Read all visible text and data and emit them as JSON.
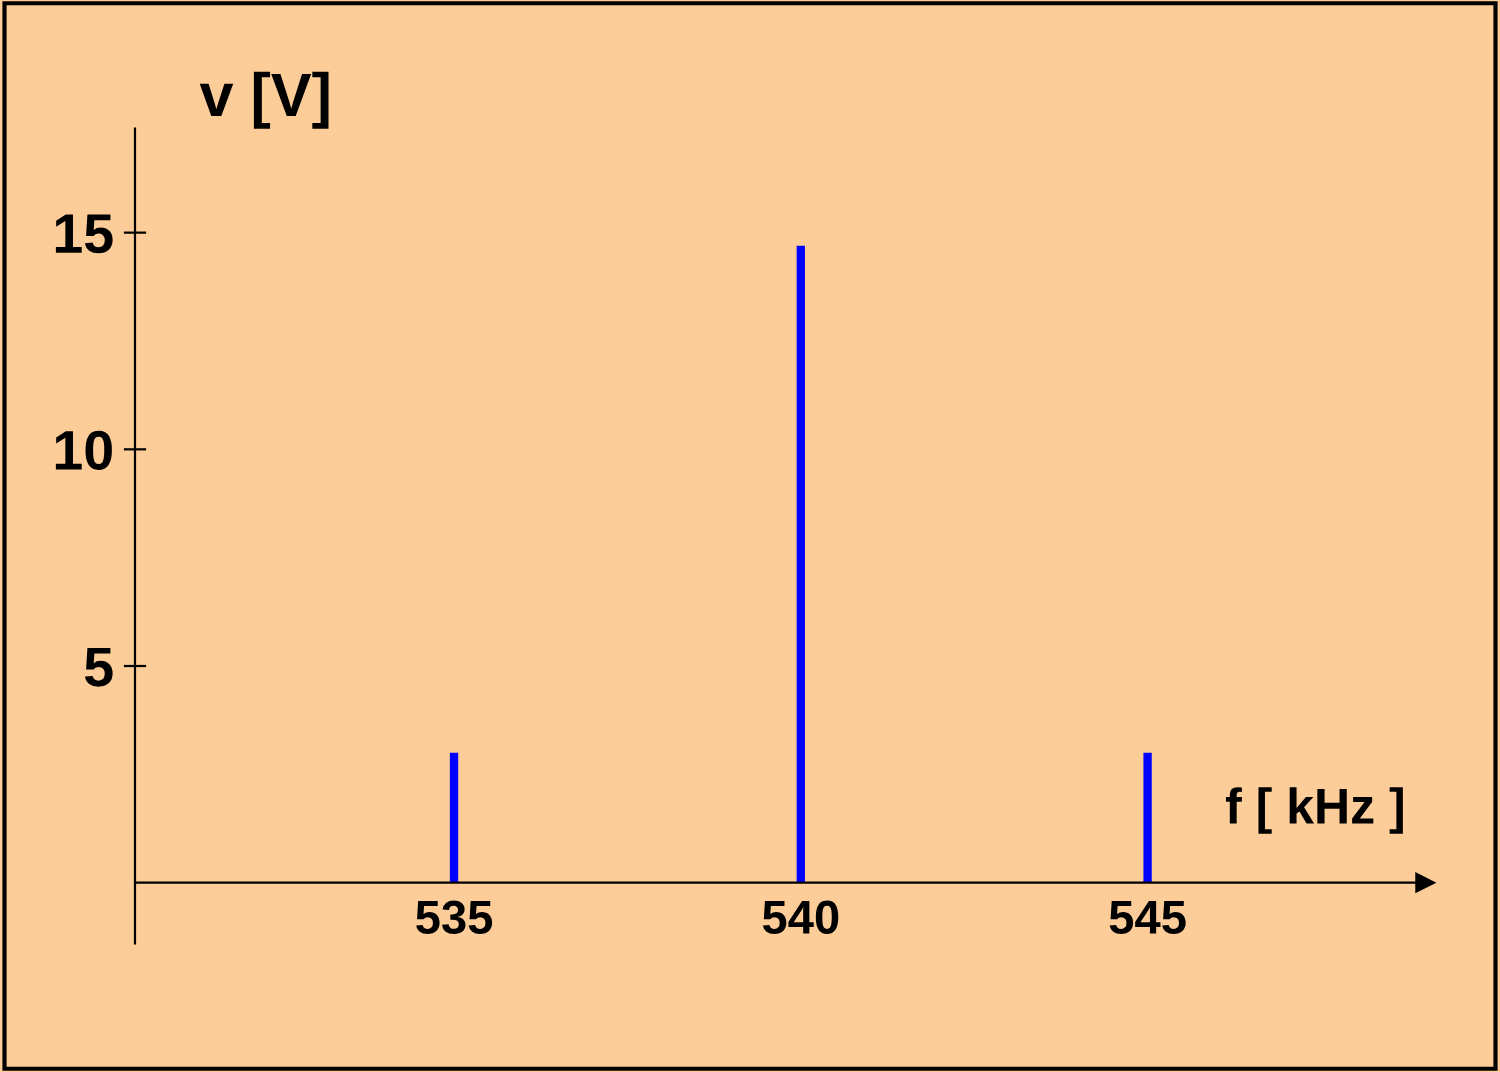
{
  "chart_data": {
    "type": "bar",
    "xlabel": "f [ kHz ]",
    "ylabel": "v [V]",
    "x": [
      535,
      540,
      545
    ],
    "values": [
      3,
      14.7,
      3
    ],
    "color": "#0000ff",
    "xlim": [
      530.4,
      549
    ],
    "ylim": [
      -1.4,
      17.4
    ],
    "xticks": [
      535,
      540,
      545
    ],
    "yticks": [
      5,
      10,
      15
    ],
    "grid": false,
    "legend": false
  }
}
